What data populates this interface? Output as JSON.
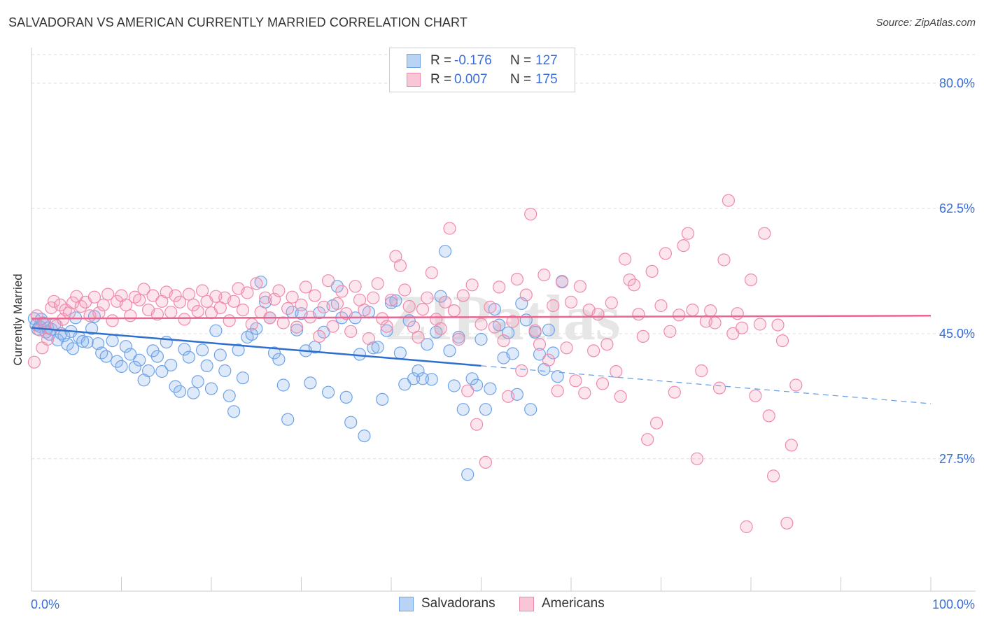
{
  "title": "SALVADORAN VS AMERICAN CURRENTLY MARRIED CORRELATION CHART",
  "source": "Source: ZipAtlas.com",
  "watermark": "ZIPatlas",
  "stats": [
    {
      "r_label": "R =",
      "r_value": "-0.176",
      "n_label": "N =",
      "n_value": "127",
      "color": "#6fa3e8"
    },
    {
      "r_label": "R =",
      "r_value": "0.007",
      "n_label": "N =",
      "n_value": "175",
      "color": "#f08aab"
    }
  ],
  "legend": {
    "items": [
      {
        "label": "Salvadorans",
        "color": "#6fa3e8"
      },
      {
        "label": "Americans",
        "color": "#f08aab"
      }
    ]
  },
  "chart_data": {
    "type": "scatter",
    "title": "SALVADORAN VS AMERICAN CURRENTLY MARRIED CORRELATION CHART",
    "xlabel": "",
    "ylabel": "Currently Married",
    "xlim": [
      0,
      100
    ],
    "ylim": [
      9.0,
      84.0
    ],
    "x_tick_labels": [
      "0.0%",
      "100.0%"
    ],
    "y_ticks": [
      27.5,
      45.0,
      62.5,
      80.0
    ],
    "y_tick_labels": [
      "27.5%",
      "45.0%",
      "62.5%",
      "80.0%"
    ],
    "grid": true,
    "legend_position": "bottom-center",
    "series": [
      {
        "name": "Salvadorans",
        "color": "#4a86d8",
        "trend": {
          "x_solid_end": 50,
          "x": [
            0,
            100
          ],
          "y": [
            45.8,
            35.2
          ]
        },
        "points": [
          [
            0.3,
            47.1
          ],
          [
            0.5,
            46.2
          ],
          [
            0.7,
            45.6
          ],
          [
            0.9,
            46.0
          ],
          [
            1.1,
            47.0
          ],
          [
            1.3,
            46.5
          ],
          [
            1.6,
            45.2
          ],
          [
            1.8,
            45.8
          ],
          [
            2.0,
            44.9
          ],
          [
            2.2,
            45.6
          ],
          [
            2.6,
            46.3
          ],
          [
            2.9,
            44.1
          ],
          [
            3.3,
            45.0
          ],
          [
            3.6,
            44.7
          ],
          [
            4.0,
            43.5
          ],
          [
            4.4,
            45.3
          ],
          [
            4.6,
            42.9
          ],
          [
            4.9,
            47.2
          ],
          [
            5.3,
            44.5
          ],
          [
            5.7,
            43.9
          ],
          [
            6.2,
            43.8
          ],
          [
            6.7,
            45.7
          ],
          [
            7.0,
            47.4
          ],
          [
            7.4,
            43.6
          ],
          [
            7.8,
            42.3
          ],
          [
            8.3,
            41.8
          ],
          [
            9.0,
            44.0
          ],
          [
            9.5,
            41.1
          ],
          [
            10.0,
            40.4
          ],
          [
            10.5,
            43.2
          ],
          [
            11.0,
            42.1
          ],
          [
            11.5,
            40.3
          ],
          [
            12.0,
            41.3
          ],
          [
            12.5,
            38.5
          ],
          [
            13.0,
            39.8
          ],
          [
            13.5,
            42.6
          ],
          [
            14.0,
            41.8
          ],
          [
            14.5,
            39.7
          ],
          [
            15.0,
            43.8
          ],
          [
            15.5,
            40.6
          ],
          [
            16.0,
            37.6
          ],
          [
            16.5,
            36.9
          ],
          [
            17.0,
            42.8
          ],
          [
            17.5,
            41.7
          ],
          [
            18.0,
            36.7
          ],
          [
            18.5,
            38.3
          ],
          [
            19.0,
            42.7
          ],
          [
            19.5,
            40.5
          ],
          [
            20.0,
            37.3
          ],
          [
            20.5,
            45.4
          ],
          [
            21.0,
            42.0
          ],
          [
            21.5,
            39.8
          ],
          [
            22.0,
            36.3
          ],
          [
            22.5,
            34.1
          ],
          [
            23.0,
            42.7
          ],
          [
            23.5,
            38.8
          ],
          [
            24.0,
            44.5
          ],
          [
            24.5,
            44.9
          ],
          [
            25.0,
            45.7
          ],
          [
            25.5,
            52.2
          ],
          [
            26.0,
            49.4
          ],
          [
            26.5,
            47.2
          ],
          [
            27.0,
            42.3
          ],
          [
            27.5,
            41.4
          ],
          [
            28.0,
            37.8
          ],
          [
            28.5,
            33.0
          ],
          [
            29.0,
            48.0
          ],
          [
            29.5,
            45.5
          ],
          [
            30.0,
            47.8
          ],
          [
            30.5,
            42.6
          ],
          [
            31.0,
            38.1
          ],
          [
            31.5,
            43.1
          ],
          [
            32.0,
            47.9
          ],
          [
            32.5,
            45.2
          ],
          [
            33.0,
            36.8
          ],
          [
            33.5,
            48.9
          ],
          [
            34.0,
            51.6
          ],
          [
            34.5,
            47.2
          ],
          [
            35.0,
            36.1
          ],
          [
            35.5,
            32.6
          ],
          [
            36.0,
            47.2
          ],
          [
            36.5,
            42.1
          ],
          [
            37.0,
            30.7
          ],
          [
            37.5,
            48.0
          ],
          [
            38.0,
            43.0
          ],
          [
            38.5,
            43.1
          ],
          [
            39.0,
            35.8
          ],
          [
            39.5,
            45.4
          ],
          [
            40.0,
            49.3
          ],
          [
            40.5,
            49.6
          ],
          [
            41.0,
            42.3
          ],
          [
            41.5,
            37.9
          ],
          [
            42.0,
            46.8
          ],
          [
            42.5,
            38.7
          ],
          [
            43.0,
            39.8
          ],
          [
            43.5,
            38.7
          ],
          [
            44.0,
            43.5
          ],
          [
            44.5,
            38.6
          ],
          [
            45.0,
            45.2
          ],
          [
            45.5,
            50.2
          ],
          [
            46.0,
            56.5
          ],
          [
            46.5,
            42.6
          ],
          [
            47.0,
            37.7
          ],
          [
            47.5,
            44.5
          ],
          [
            48.0,
            34.4
          ],
          [
            48.5,
            25.3
          ],
          [
            49.0,
            38.7
          ],
          [
            49.5,
            37.8
          ],
          [
            50.0,
            44.2
          ],
          [
            50.5,
            34.4
          ],
          [
            51.0,
            37.3
          ],
          [
            51.5,
            48.4
          ],
          [
            52.0,
            46.2
          ],
          [
            52.5,
            41.6
          ],
          [
            53.0,
            45.1
          ],
          [
            53.5,
            42.2
          ],
          [
            54.0,
            36.5
          ],
          [
            54.5,
            49.2
          ],
          [
            55.0,
            46.9
          ],
          [
            55.5,
            34.4
          ],
          [
            56.0,
            45.2
          ],
          [
            56.5,
            42.1
          ],
          [
            57.0,
            40.0
          ],
          [
            57.5,
            45.5
          ],
          [
            58.0,
            42.3
          ],
          [
            58.5,
            39.0
          ],
          [
            59.0,
            52.3
          ]
        ]
      },
      {
        "name": "Americans",
        "color": "#ec7fa2",
        "trend": {
          "x": [
            0,
            100
          ],
          "y": [
            47.1,
            47.5
          ]
        },
        "points": [
          [
            0.3,
            41.0
          ],
          [
            0.6,
            47.5
          ],
          [
            0.9,
            45.5
          ],
          [
            1.2,
            43.0
          ],
          [
            1.5,
            46.4
          ],
          [
            1.8,
            44.2
          ],
          [
            2.2,
            48.6
          ],
          [
            2.5,
            49.5
          ],
          [
            2.8,
            46.1
          ],
          [
            3.2,
            49.0
          ],
          [
            3.5,
            47.0
          ],
          [
            3.8,
            48.3
          ],
          [
            4.2,
            47.9
          ],
          [
            4.6,
            49.3
          ],
          [
            5.0,
            50.2
          ],
          [
            5.5,
            48.8
          ],
          [
            6.0,
            49.4
          ],
          [
            6.5,
            47.5
          ],
          [
            7.0,
            50.1
          ],
          [
            7.5,
            47.9
          ],
          [
            8.0,
            49.0
          ],
          [
            8.5,
            50.5
          ],
          [
            9.0,
            46.8
          ],
          [
            9.5,
            49.5
          ],
          [
            10.0,
            50.3
          ],
          [
            10.5,
            49.0
          ],
          [
            11.0,
            47.5
          ],
          [
            11.5,
            50.1
          ],
          [
            12.0,
            49.7
          ],
          [
            12.5,
            51.2
          ],
          [
            13.0,
            48.3
          ],
          [
            13.5,
            50.3
          ],
          [
            14.0,
            47.7
          ],
          [
            14.5,
            49.5
          ],
          [
            15.0,
            50.8
          ],
          [
            15.5,
            48.0
          ],
          [
            16.0,
            50.3
          ],
          [
            16.5,
            49.4
          ],
          [
            17.0,
            47.0
          ],
          [
            17.5,
            50.5
          ],
          [
            18.0,
            49.0
          ],
          [
            18.5,
            48.1
          ],
          [
            19.0,
            51.0
          ],
          [
            19.5,
            49.5
          ],
          [
            20.0,
            47.9
          ],
          [
            20.5,
            50.2
          ],
          [
            21.0,
            48.6
          ],
          [
            21.5,
            50.0
          ],
          [
            22.0,
            46.8
          ],
          [
            22.5,
            49.5
          ],
          [
            23.0,
            51.3
          ],
          [
            23.5,
            48.3
          ],
          [
            24.0,
            50.7
          ],
          [
            24.5,
            46.3
          ],
          [
            25.0,
            52.0
          ],
          [
            25.5,
            48.0
          ],
          [
            26.0,
            50.0
          ],
          [
            26.5,
            47.2
          ],
          [
            27.0,
            49.8
          ],
          [
            27.5,
            51.0
          ],
          [
            28.0,
            46.5
          ],
          [
            28.5,
            48.5
          ],
          [
            29.0,
            50.1
          ],
          [
            29.5,
            45.9
          ],
          [
            30.0,
            49.0
          ],
          [
            30.5,
            51.5
          ],
          [
            31.0,
            47.3
          ],
          [
            31.5,
            50.3
          ],
          [
            32.0,
            44.6
          ],
          [
            32.5,
            48.7
          ],
          [
            33.0,
            52.4
          ],
          [
            33.5,
            46.0
          ],
          [
            34.0,
            49.2
          ],
          [
            34.5,
            50.9
          ],
          [
            35.0,
            47.8
          ],
          [
            35.5,
            45.3
          ],
          [
            36.0,
            51.6
          ],
          [
            36.5,
            49.7
          ],
          [
            37.0,
            48.3
          ],
          [
            37.5,
            44.3
          ],
          [
            38.0,
            50.0
          ],
          [
            38.5,
            52.0
          ],
          [
            39.0,
            47.1
          ],
          [
            39.5,
            46.0
          ],
          [
            40.0,
            49.7
          ],
          [
            40.5,
            55.8
          ],
          [
            41.0,
            54.5
          ],
          [
            41.5,
            51.1
          ],
          [
            42.0,
            48.8
          ],
          [
            42.5,
            45.9
          ],
          [
            43.0,
            44.5
          ],
          [
            43.5,
            48.4
          ],
          [
            44.0,
            50.0
          ],
          [
            44.5,
            53.5
          ],
          [
            45.0,
            47.0
          ],
          [
            45.5,
            45.7
          ],
          [
            46.0,
            49.4
          ],
          [
            46.5,
            59.7
          ],
          [
            47.0,
            48.2
          ],
          [
            47.5,
            44.2
          ],
          [
            48.0,
            50.3
          ],
          [
            48.5,
            37.0
          ],
          [
            49.0,
            51.8
          ],
          [
            49.5,
            32.3
          ],
          [
            50.0,
            46.3
          ],
          [
            50.5,
            27.0
          ],
          [
            51.0,
            48.7
          ],
          [
            51.5,
            45.9
          ],
          [
            52.0,
            51.5
          ],
          [
            52.5,
            44.0
          ],
          [
            53.0,
            36.2
          ],
          [
            53.5,
            46.7
          ],
          [
            54.0,
            52.6
          ],
          [
            54.5,
            39.8
          ],
          [
            55.0,
            50.4
          ],
          [
            55.5,
            61.7
          ],
          [
            56.0,
            45.4
          ],
          [
            56.5,
            43.5
          ],
          [
            57.0,
            53.2
          ],
          [
            57.5,
            41.3
          ],
          [
            58.0,
            48.9
          ],
          [
            58.5,
            37.0
          ],
          [
            59.0,
            52.2
          ],
          [
            59.5,
            43.0
          ],
          [
            60.0,
            49.4
          ],
          [
            60.5,
            38.4
          ],
          [
            61.0,
            51.6
          ],
          [
            61.5,
            36.7
          ],
          [
            62.0,
            48.3
          ],
          [
            62.5,
            42.6
          ],
          [
            63.0,
            47.7
          ],
          [
            63.5,
            38.0
          ],
          [
            64.0,
            43.5
          ],
          [
            64.5,
            49.3
          ],
          [
            65.0,
            39.7
          ],
          [
            65.5,
            36.2
          ],
          [
            66.0,
            55.4
          ],
          [
            66.5,
            52.5
          ],
          [
            67.0,
            51.8
          ],
          [
            67.5,
            47.7
          ],
          [
            68.0,
            44.6
          ],
          [
            68.5,
            30.2
          ],
          [
            69.0,
            53.7
          ],
          [
            69.5,
            32.5
          ],
          [
            70.0,
            48.9
          ],
          [
            70.5,
            56.2
          ],
          [
            71.0,
            45.3
          ],
          [
            71.5,
            36.8
          ],
          [
            72.0,
            47.6
          ],
          [
            72.5,
            57.3
          ],
          [
            73.0,
            59.0
          ],
          [
            73.5,
            48.3
          ],
          [
            74.0,
            27.5
          ],
          [
            74.5,
            39.8
          ],
          [
            75.0,
            46.7
          ],
          [
            75.5,
            48.2
          ],
          [
            76.0,
            46.5
          ],
          [
            76.5,
            37.4
          ],
          [
            77.0,
            55.3
          ],
          [
            77.5,
            63.6
          ],
          [
            78.0,
            45.0
          ],
          [
            78.5,
            47.8
          ],
          [
            79.0,
            45.8
          ],
          [
            79.5,
            18.0
          ],
          [
            80.0,
            52.5
          ],
          [
            80.5,
            36.3
          ],
          [
            81.0,
            46.3
          ],
          [
            81.5,
            59.0
          ],
          [
            82.0,
            33.5
          ],
          [
            82.5,
            25.1
          ],
          [
            83.0,
            46.2
          ],
          [
            83.5,
            44.0
          ],
          [
            84.0,
            18.5
          ],
          [
            84.5,
            29.4
          ],
          [
            85.0,
            37.8
          ]
        ]
      }
    ]
  }
}
